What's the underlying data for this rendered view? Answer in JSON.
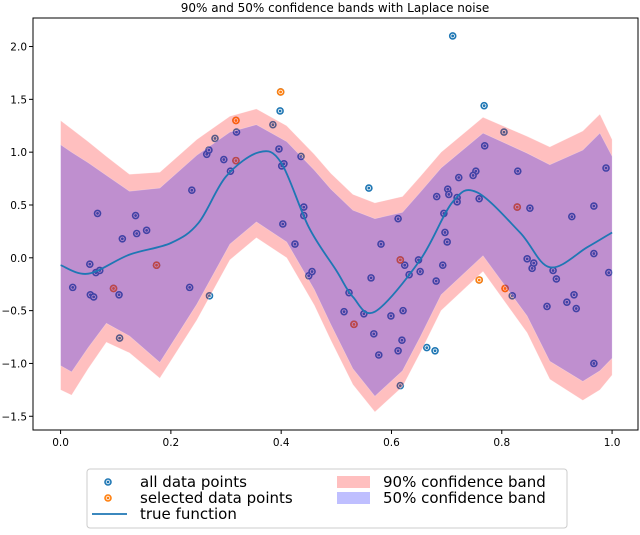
{
  "chart_data": {
    "type": "scatter",
    "title": "90% and 50% confidence bands with Laplace noise",
    "xlabel": "",
    "ylabel": "",
    "xlim": [
      -0.05,
      1.047
    ],
    "ylim": [
      -1.63,
      2.27
    ],
    "x_ticks": [
      0.0,
      0.2,
      0.4,
      0.6,
      0.8,
      1.0
    ],
    "x_tick_labels": [
      "0.0",
      "0.2",
      "0.4",
      "0.6",
      "0.8",
      "1.0"
    ],
    "y_ticks": [
      -1.5,
      -1.0,
      -0.5,
      0.0,
      0.5,
      1.0,
      1.5,
      2.0
    ],
    "y_tick_labels": [
      "−1.5",
      "−1.0",
      "−0.5",
      "0.0",
      "0.5",
      "1.0",
      "1.5",
      "2.0"
    ],
    "grid": false,
    "legend_position": "bottom-outside",
    "legend": {
      "all_points": "all data points",
      "selected_points": "selected data points",
      "true_function": "true function",
      "band90": "90% confidence band",
      "band50": "50% confidence band"
    },
    "colors": {
      "all_points": "#1f77b4",
      "selected_points": "#ff7f0e",
      "true_function": "#1f77b4",
      "band90": "#ff0000",
      "band50": "#0000ff"
    },
    "all_points": [
      [
        0.022,
        -0.28
      ],
      [
        0.053,
        -0.06
      ],
      [
        0.064,
        -0.14
      ],
      [
        0.071,
        -0.12
      ],
      [
        0.054,
        -0.35
      ],
      [
        0.06,
        -0.37
      ],
      [
        0.067,
        0.42
      ],
      [
        0.096,
        -0.29
      ],
      [
        0.106,
        -0.35
      ],
      [
        0.107,
        -0.76
      ],
      [
        0.112,
        0.18
      ],
      [
        0.136,
        0.4
      ],
      [
        0.138,
        0.23
      ],
      [
        0.156,
        0.26
      ],
      [
        0.174,
        -0.07
      ],
      [
        0.234,
        -0.28
      ],
      [
        0.238,
        0.64
      ],
      [
        0.27,
        -0.36
      ],
      [
        0.265,
        0.98
      ],
      [
        0.269,
        1.02
      ],
      [
        0.28,
        1.13
      ],
      [
        0.296,
        0.93
      ],
      [
        0.308,
        0.82
      ],
      [
        0.318,
        0.92
      ],
      [
        0.319,
        1.19
      ],
      [
        0.318,
        1.3
      ],
      [
        0.385,
        1.26
      ],
      [
        0.399,
        1.57
      ],
      [
        0.398,
        1.39
      ],
      [
        0.396,
        1.03
      ],
      [
        0.401,
        0.87
      ],
      [
        0.405,
        0.89
      ],
      [
        0.436,
        0.96
      ],
      [
        0.403,
        0.32
      ],
      [
        0.441,
        0.48
      ],
      [
        0.441,
        0.4
      ],
      [
        0.425,
        0.13
      ],
      [
        0.45,
        -0.17
      ],
      [
        0.456,
        -0.13
      ],
      [
        0.711,
        2.1
      ],
      [
        0.768,
        1.44
      ],
      [
        0.559,
        0.66
      ],
      [
        0.804,
        1.19
      ],
      [
        0.769,
        1.06
      ],
      [
        0.829,
        0.82
      ],
      [
        0.989,
        0.85
      ],
      [
        0.753,
        0.82
      ],
      [
        0.748,
        0.78
      ],
      [
        0.722,
        0.76
      ],
      [
        0.682,
        0.58
      ],
      [
        0.702,
        0.65
      ],
      [
        0.704,
        0.6
      ],
      [
        0.719,
        0.57
      ],
      [
        0.719,
        0.53
      ],
      [
        0.759,
        0.56
      ],
      [
        0.695,
        0.42
      ],
      [
        0.828,
        0.48
      ],
      [
        0.851,
        0.47
      ],
      [
        0.927,
        0.39
      ],
      [
        0.967,
        0.49
      ],
      [
        0.612,
        0.37
      ],
      [
        0.581,
        0.13
      ],
      [
        0.697,
        0.24
      ],
      [
        0.701,
        0.15
      ],
      [
        0.616,
        -0.02
      ],
      [
        0.624,
        -0.07
      ],
      [
        0.649,
        -0.02
      ],
      [
        0.632,
        -0.16
      ],
      [
        0.652,
        -0.13
      ],
      [
        0.693,
        -0.07
      ],
      [
        0.563,
        -0.19
      ],
      [
        0.681,
        -0.22
      ],
      [
        0.759,
        -0.21
      ],
      [
        0.806,
        -0.29
      ],
      [
        0.819,
        -0.36
      ],
      [
        0.846,
        -0.01
      ],
      [
        0.855,
        -0.1
      ],
      [
        0.858,
        -0.05
      ],
      [
        0.893,
        -0.12
      ],
      [
        0.899,
        -0.2
      ],
      [
        0.967,
        0.04
      ],
      [
        0.994,
        -0.14
      ],
      [
        0.882,
        -0.46
      ],
      [
        0.918,
        -0.42
      ],
      [
        0.931,
        -0.35
      ],
      [
        0.935,
        -0.48
      ],
      [
        0.523,
        -0.33
      ],
      [
        0.514,
        -0.51
      ],
      [
        0.532,
        -0.63
      ],
      [
        0.55,
        -0.53
      ],
      [
        0.599,
        -0.55
      ],
      [
        0.621,
        -0.5
      ],
      [
        0.568,
        -0.72
      ],
      [
        0.577,
        -0.92
      ],
      [
        0.612,
        -0.88
      ],
      [
        0.619,
        -0.78
      ],
      [
        0.664,
        -0.85
      ],
      [
        0.679,
        -0.88
      ],
      [
        0.616,
        -1.21
      ],
      [
        0.967,
        -1.0
      ]
    ],
    "selected_points": [
      [
        0.318,
        1.3
      ],
      [
        0.399,
        1.57
      ],
      [
        0.318,
        0.92
      ],
      [
        0.096,
        -0.29
      ],
      [
        0.174,
        -0.07
      ],
      [
        0.616,
        -0.02
      ],
      [
        0.532,
        -0.63
      ],
      [
        0.828,
        0.48
      ],
      [
        0.759,
        -0.21
      ],
      [
        0.806,
        -0.29
      ]
    ],
    "band_x": [
      0,
      0.02,
      0.05,
      0.083,
      0.125,
      0.18,
      0.247,
      0.307,
      0.355,
      0.41,
      0.46,
      0.49,
      0.53,
      0.57,
      0.62,
      0.652,
      0.69,
      0.766,
      0.846,
      0.887,
      0.947,
      0.978,
      1.0
    ],
    "band90_upper": [
      1.3,
      1.22,
      1.1,
      0.96,
      0.79,
      0.81,
      1.12,
      1.34,
      1.41,
      1.25,
      0.98,
      0.8,
      0.6,
      0.52,
      0.58,
      0.77,
      1.0,
      1.33,
      1.15,
      1.05,
      1.2,
      1.36,
      1.12
    ],
    "band90_lower": [
      -1.25,
      -1.3,
      -1.05,
      -0.8,
      -0.9,
      -1.14,
      -0.59,
      -0.02,
      0.19,
      0.0,
      -0.45,
      -0.78,
      -1.2,
      -1.46,
      -1.22,
      -0.9,
      -0.5,
      -0.13,
      -0.71,
      -1.15,
      -1.35,
      -1.25,
      -1.11
    ],
    "band50_upper": [
      1.07,
      1.0,
      0.9,
      0.78,
      0.63,
      0.66,
      0.97,
      1.19,
      1.26,
      1.1,
      0.83,
      0.65,
      0.45,
      0.37,
      0.43,
      0.62,
      0.85,
      1.18,
      0.99,
      0.88,
      1.02,
      1.18,
      0.96
    ],
    "band50_lower": [
      -1.02,
      -1.08,
      -0.85,
      -0.62,
      -0.74,
      -0.99,
      -0.44,
      0.13,
      0.34,
      0.15,
      -0.3,
      -0.63,
      -1.05,
      -1.31,
      -1.07,
      -0.75,
      -0.35,
      0.02,
      -0.55,
      -0.98,
      -1.17,
      -1.07,
      -0.95
    ],
    "true_function": {
      "x": [
        0,
        0.05,
        0.125,
        0.2,
        0.25,
        0.3,
        0.36,
        0.4,
        0.45,
        0.5,
        0.53,
        0.57,
        0.652,
        0.711,
        0.755,
        0.833,
        0.887,
        0.955,
        1.0
      ],
      "y": [
        -0.07,
        -0.15,
        0.03,
        0.14,
        0.33,
        0.77,
        1.0,
        0.9,
        0.29,
        -0.12,
        -0.37,
        -0.51,
        -0.02,
        0.53,
        0.62,
        0.24,
        -0.09,
        0.1,
        0.24
      ]
    }
  }
}
